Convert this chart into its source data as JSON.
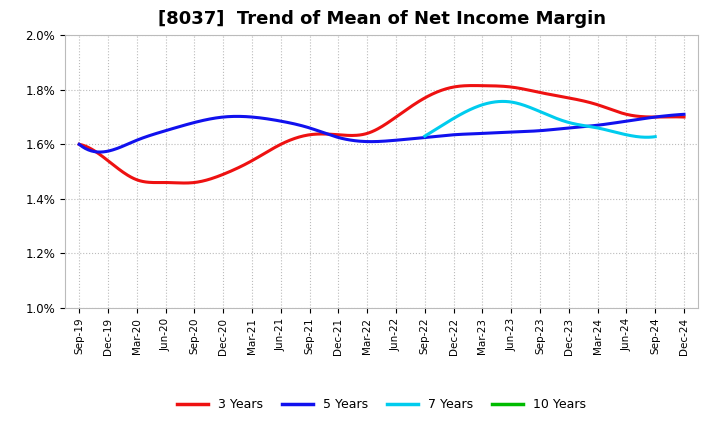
{
  "title": "[8037]  Trend of Mean of Net Income Margin",
  "title_fontsize": 13,
  "ylim": [
    0.01,
    0.02
  ],
  "yticks": [
    0.01,
    0.012,
    0.014,
    0.016,
    0.018,
    0.02
  ],
  "ytick_labels": [
    "1.0%",
    "1.2%",
    "1.4%",
    "1.6%",
    "1.8%",
    "2.0%"
  ],
  "x_labels": [
    "Sep-19",
    "Dec-19",
    "Mar-20",
    "Jun-20",
    "Sep-20",
    "Dec-20",
    "Mar-21",
    "Jun-21",
    "Sep-21",
    "Dec-21",
    "Mar-22",
    "Jun-22",
    "Sep-22",
    "Dec-22",
    "Mar-23",
    "Jun-23",
    "Sep-23",
    "Dec-23",
    "Mar-24",
    "Jun-24",
    "Sep-24",
    "Dec-24"
  ],
  "series": {
    "3 Years": {
      "color": "#ee1111",
      "values": [
        0.016,
        0.0154,
        0.0147,
        0.0146,
        0.0146,
        0.0149,
        0.0154,
        0.016,
        0.01635,
        0.01635,
        0.0164,
        0.017,
        0.0177,
        0.0181,
        0.01815,
        0.0181,
        0.0179,
        0.0177,
        0.01745,
        0.0171,
        0.017,
        0.017
      ]
    },
    "5 Years": {
      "color": "#1111ee",
      "values": [
        0.016,
        0.01575,
        0.01615,
        0.0165,
        0.0168,
        0.017,
        0.017,
        0.01685,
        0.0166,
        0.01625,
        0.0161,
        0.01615,
        0.01625,
        0.01635,
        0.0164,
        0.01645,
        0.0165,
        0.0166,
        0.0167,
        0.01685,
        0.017,
        0.0171
      ]
    },
    "7 Years": {
      "color": "#00ccee",
      "values": [
        null,
        null,
        null,
        null,
        null,
        null,
        null,
        null,
        null,
        null,
        null,
        null,
        0.0163,
        0.01695,
        0.01745,
        0.01755,
        0.0172,
        0.0168,
        0.0166,
        0.01635,
        0.01628,
        null
      ]
    },
    "10 Years": {
      "color": "#00bb00",
      "values": [
        null,
        null,
        null,
        null,
        null,
        null,
        null,
        null,
        null,
        null,
        null,
        null,
        null,
        null,
        null,
        null,
        null,
        null,
        null,
        null,
        null,
        null
      ]
    }
  },
  "legend_loc": "lower center",
  "background_color": "#ffffff",
  "plot_bg_color": "#ffffff",
  "grid_color": "#bbbbbb",
  "line_width": 2.2
}
